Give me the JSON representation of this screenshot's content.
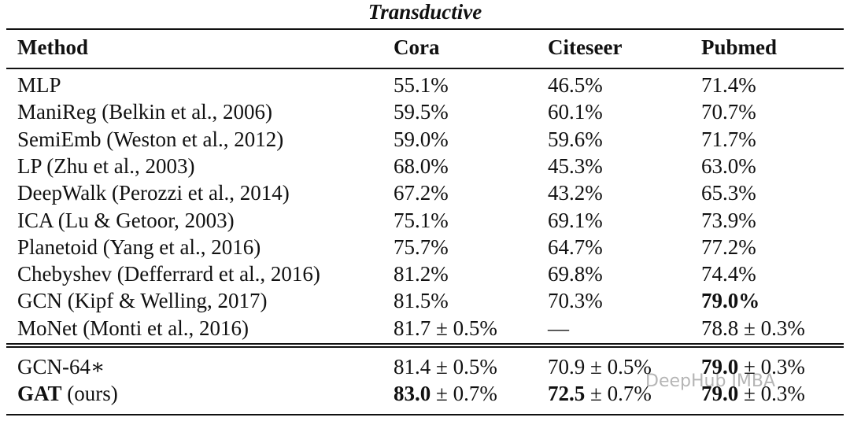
{
  "title": "Transductive",
  "table": {
    "header": [
      "Method",
      "Cora",
      "Citeseer",
      "Pubmed"
    ],
    "sections": [
      [
        [
          "MLP",
          "55.1%",
          "46.5%",
          "71.4%"
        ],
        [
          "ManiReg (Belkin et al., 2006)",
          "59.5%",
          "60.1%",
          "70.7%"
        ],
        [
          "SemiEmb (Weston et al., 2012)",
          "59.0%",
          "59.6%",
          "71.7%"
        ],
        [
          "LP (Zhu et al., 2003)",
          "68.0%",
          "45.3%",
          "63.0%"
        ],
        [
          "DeepWalk (Perozzi et al., 2014)",
          "67.2%",
          "43.2%",
          "65.3%"
        ],
        [
          "ICA (Lu & Getoor, 2003)",
          "75.1%",
          "69.1%",
          "73.9%"
        ],
        [
          "Planetoid (Yang et al., 2016)",
          "75.7%",
          "64.7%",
          "77.2%"
        ],
        [
          "Chebyshev (Defferrard et al., 2016)",
          "81.2%",
          "69.8%",
          "74.4%"
        ],
        [
          "GCN (Kipf & Welling, 2017)",
          "81.5%",
          "70.3%",
          {
            "strong": "79.0%"
          }
        ],
        [
          "MoNet (Monti et al., 2016)",
          "81.7 ± 0.5%",
          "—",
          "78.8 ± 0.3%"
        ]
      ],
      [
        [
          "GCN-64∗",
          "81.4 ± 0.5%",
          "70.9 ± 0.5%",
          {
            "strong": "79.0",
            "text": " ± 0.3%"
          }
        ],
        [
          {
            "strong": "GAT",
            "text": " (ours)"
          },
          {
            "strong": "83.0",
            "text": " ± 0.7%"
          },
          {
            "strong": "72.5",
            "text": " ± 0.7%"
          },
          {
            "strong": "79.0",
            "text": " ± 0.3%"
          }
        ]
      ]
    ]
  },
  "watermark": "DeepHub IMBA"
}
